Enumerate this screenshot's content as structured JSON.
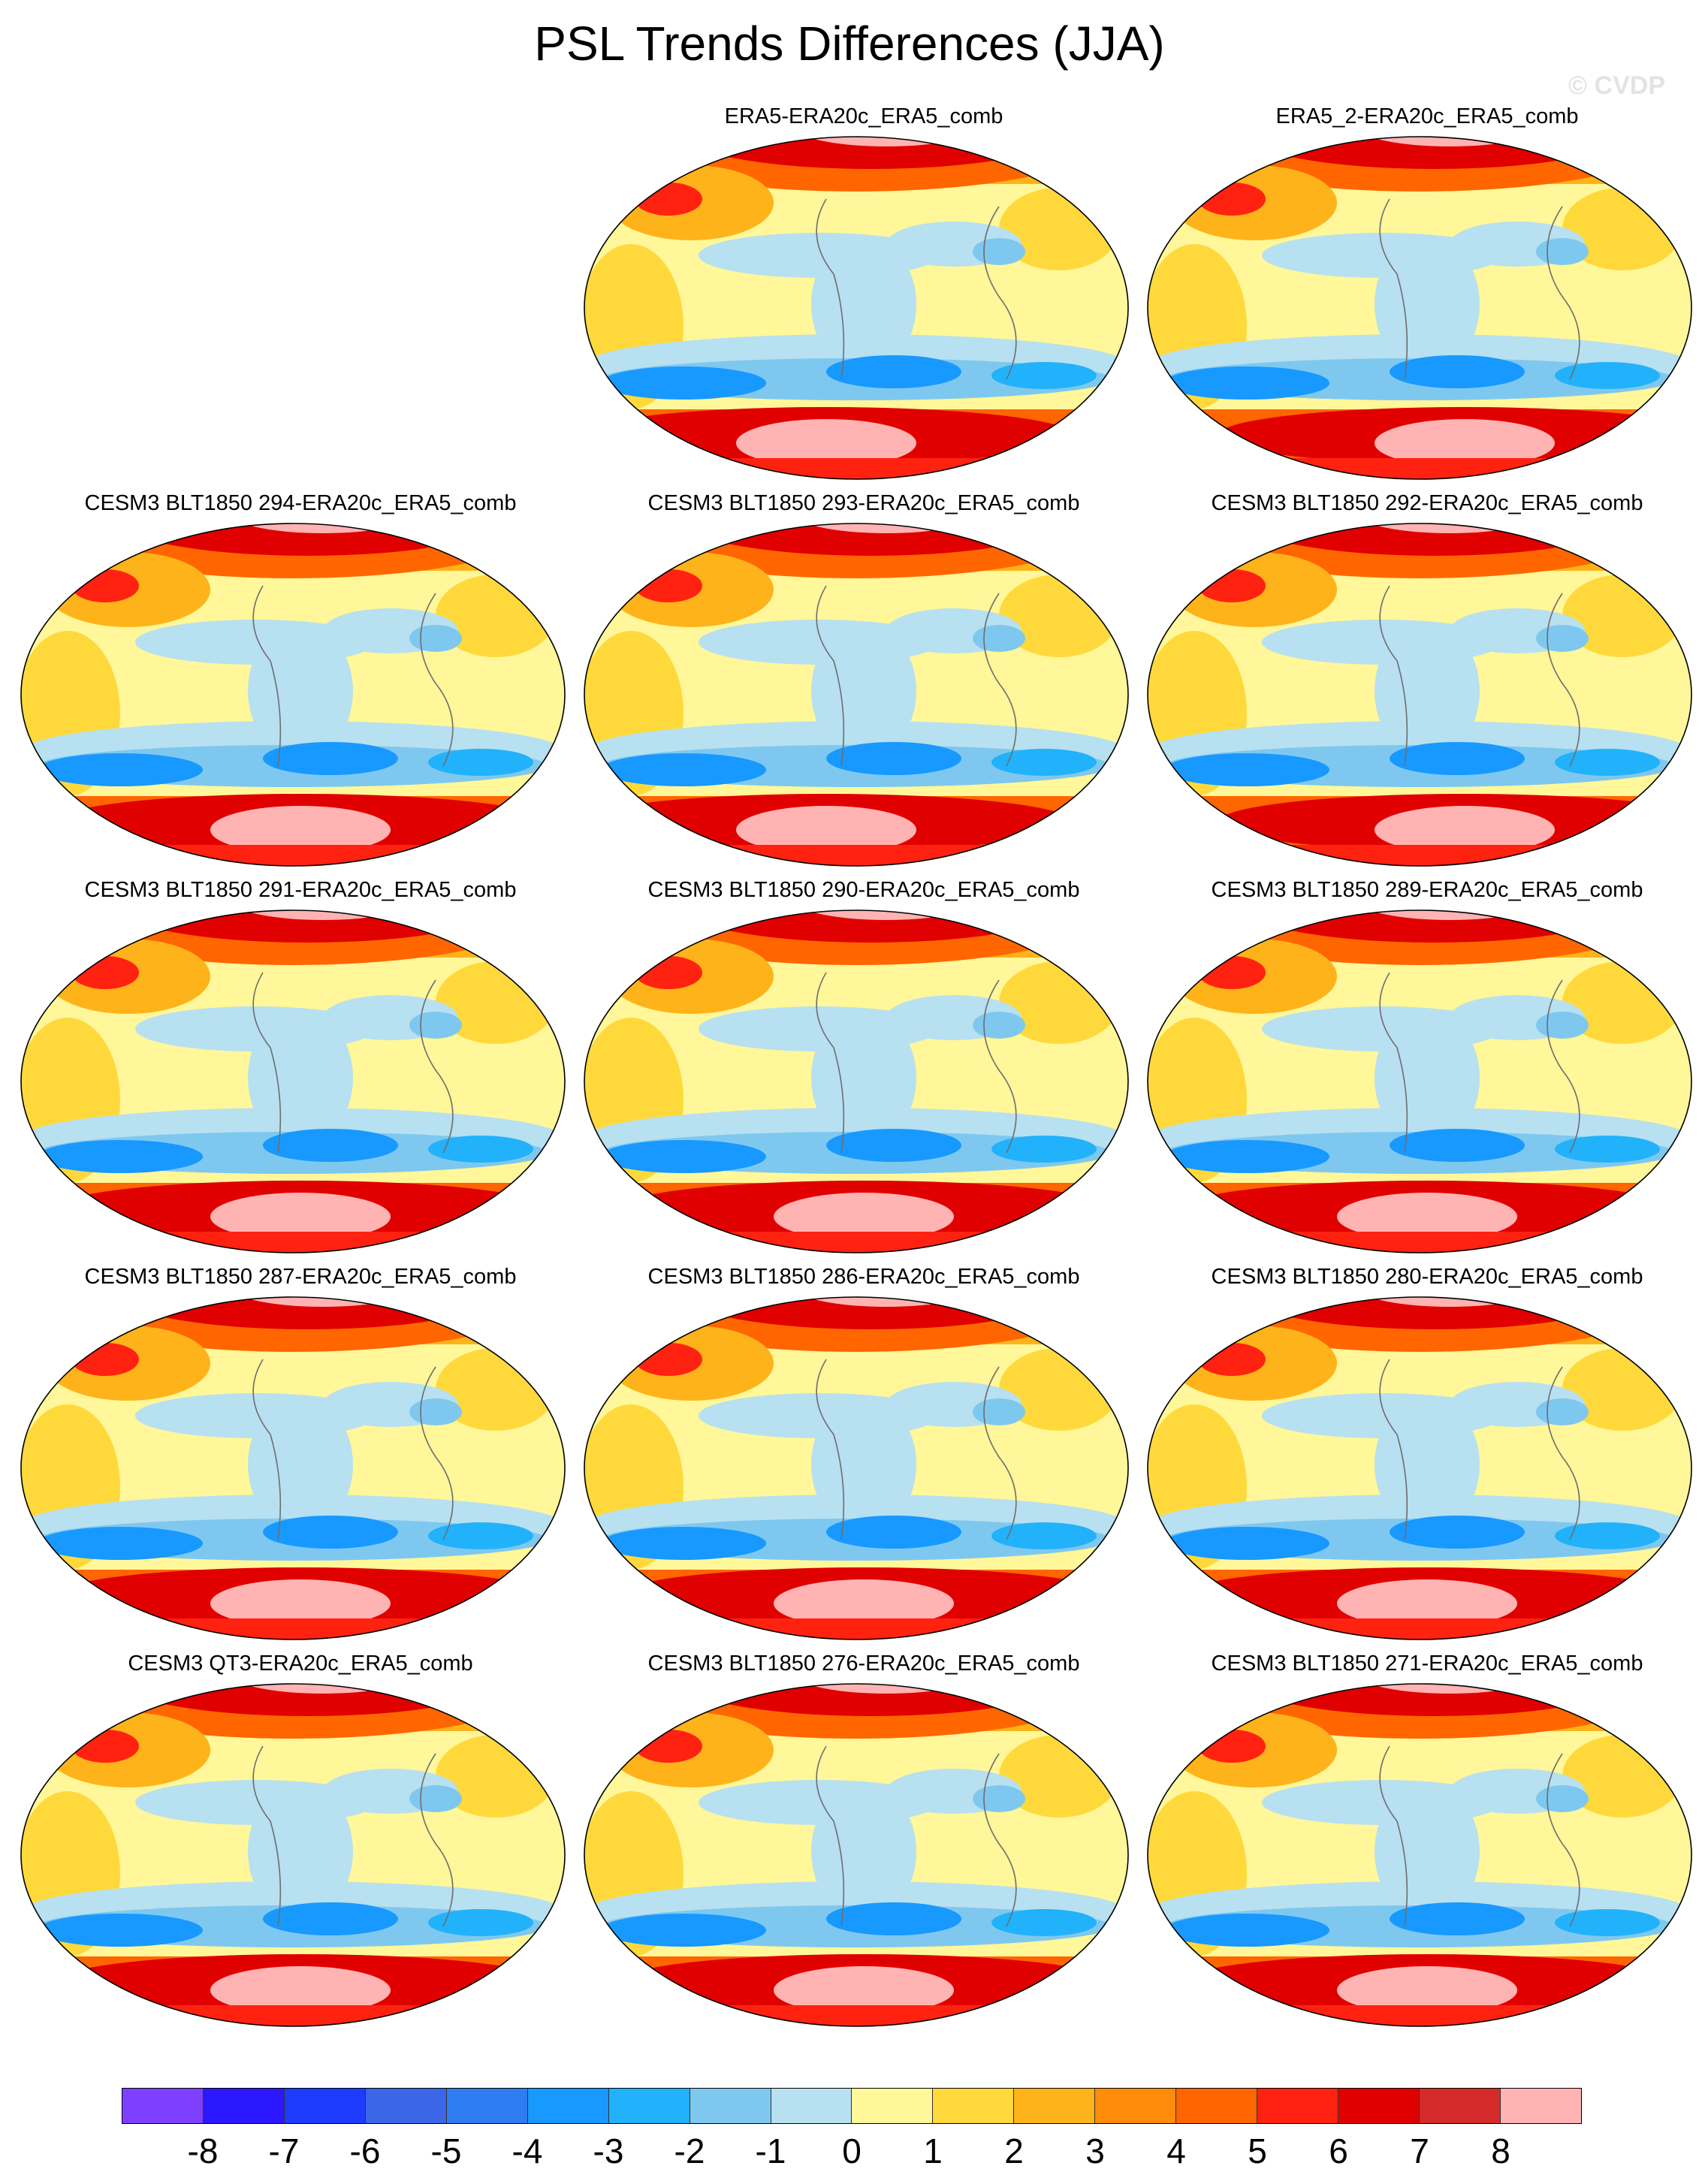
{
  "title": "PSL Trends Differences (JJA)",
  "watermark": "© CVDP",
  "panels": [
    {
      "title": "ERA5-ERA20c_ERA5_comb",
      "south_peak": "center-left"
    },
    {
      "title": "ERA5_2-ERA20c_ERA5_comb",
      "south_peak": "center-right"
    },
    {
      "title": "CESM3 BLT1850 294-ERA20c_ERA5_comb",
      "south_peak": "center"
    },
    {
      "title": "CESM3 BLT1850 293-ERA20c_ERA5_comb",
      "south_peak": "center-left"
    },
    {
      "title": "CESM3 BLT1850 292-ERA20c_ERA5_comb",
      "south_peak": "center-right"
    },
    {
      "title": "CESM3 BLT1850 291-ERA20c_ERA5_comb",
      "south_peak": "center"
    },
    {
      "title": "CESM3 BLT1850 290-ERA20c_ERA5_comb",
      "south_peak": "center"
    },
    {
      "title": "CESM3 BLT1850 289-ERA20c_ERA5_comb",
      "south_peak": "center"
    },
    {
      "title": "CESM3 BLT1850 287-ERA20c_ERA5_comb",
      "south_peak": "center"
    },
    {
      "title": "CESM3 BLT1850 286-ERA20c_ERA5_comb",
      "south_peak": "center"
    },
    {
      "title": "CESM3 BLT1850 280-ERA20c_ERA5_comb",
      "south_peak": "center"
    },
    {
      "title": "CESM3 QT3-ERA20c_ERA5_comb",
      "south_peak": "center"
    },
    {
      "title": "CESM3 BLT1850 276-ERA20c_ERA5_comb",
      "south_peak": "center"
    },
    {
      "title": "CESM3 BLT1850 271-ERA20c_ERA5_comb",
      "south_peak": "center"
    }
  ],
  "colorbar": {
    "colors": [
      "#7f3fff",
      "#2b18ff",
      "#1e3cff",
      "#3b66e6",
      "#2f7cf0",
      "#1799ff",
      "#21b2fb",
      "#7ec8ef",
      "#b7e0f1",
      "#fff799",
      "#ffd93b",
      "#ffb31a",
      "#ff8c0a",
      "#ff6600",
      "#ff2211",
      "#e00000",
      "#d42a2a",
      "#ffb3b3"
    ],
    "labels": [
      "-8",
      "-7",
      "-6",
      "-5",
      "-4",
      "-3",
      "-2",
      "-1",
      "0",
      "1",
      "2",
      "3",
      "4",
      "5",
      "6",
      "7",
      "8"
    ]
  }
}
